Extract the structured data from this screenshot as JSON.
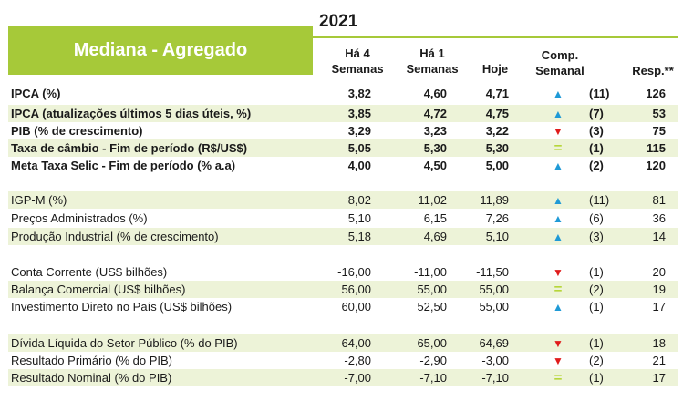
{
  "title": "Mediana - Agregado",
  "year": "2021",
  "headers": {
    "col1_line1": "Há 4",
    "col1_line2": "Semanas",
    "col2_line1": "Há 1",
    "col2_line2": "Semanas",
    "col3": "Hoje",
    "col4_line1": "Comp.",
    "col4_line2": "Semanal",
    "col5": "Resp.**"
  },
  "rows": [
    {
      "label": "IPCA (%)",
      "w4": "3,82",
      "w1": "4,60",
      "today": "4,71",
      "trend": "up",
      "count": "(11)",
      "resp": "126"
    },
    {
      "label": "IPCA (atualizações últimos 5 dias úteis, %)",
      "w4": "3,85",
      "w1": "4,72",
      "today": "4,75",
      "trend": "up",
      "count": "(7)",
      "resp": "53"
    },
    {
      "label": "PIB (% de crescimento)",
      "w4": "3,29",
      "w1": "3,23",
      "today": "3,22",
      "trend": "down",
      "count": "(3)",
      "resp": "75"
    },
    {
      "label": "Taxa de câmbio - Fim de período (R$/US$)",
      "w4": "5,05",
      "w1": "5,30",
      "today": "5,30",
      "trend": "eq",
      "count": "(1)",
      "resp": "115"
    },
    {
      "label": "Meta Taxa Selic - Fim de período (% a.a)",
      "w4": "4,00",
      "w1": "4,50",
      "today": "5,00",
      "trend": "up",
      "count": "(2)",
      "resp": "120"
    },
    {
      "label": "IGP-M (%)",
      "w4": "8,02",
      "w1": "11,02",
      "today": "11,89",
      "trend": "up",
      "count": "(11)",
      "resp": "81"
    },
    {
      "label": "Preços Administrados (%)",
      "w4": "5,10",
      "w1": "6,15",
      "today": "7,26",
      "trend": "up",
      "count": "(6)",
      "resp": "36"
    },
    {
      "label": "Produção Industrial (% de crescimento)",
      "w4": "5,18",
      "w1": "4,69",
      "today": "5,10",
      "trend": "up",
      "count": "(3)",
      "resp": "14"
    },
    {
      "label": "Conta Corrente (US$ bilhões)",
      "w4": "-16,00",
      "w1": "-11,00",
      "today": "-11,50",
      "trend": "down",
      "count": "(1)",
      "resp": "20"
    },
    {
      "label": "Balança Comercial (US$ bilhões)",
      "w4": "56,00",
      "w1": "55,00",
      "today": "55,00",
      "trend": "eq",
      "count": "(2)",
      "resp": "19"
    },
    {
      "label": "Investimento Direto no País (US$ bilhões)",
      "w4": "60,00",
      "w1": "52,50",
      "today": "55,00",
      "trend": "up",
      "count": "(1)",
      "resp": "17"
    },
    {
      "label": "Dívida Líquida do Setor Público (% do PIB)",
      "w4": "64,00",
      "w1": "65,00",
      "today": "64,69",
      "trend": "down",
      "count": "(1)",
      "resp": "18"
    },
    {
      "label": "Resultado Primário (% do PIB)",
      "w4": "-2,80",
      "w1": "-2,90",
      "today": "-3,00",
      "trend": "down",
      "count": "(2)",
      "resp": "21"
    },
    {
      "label": "Resultado Nominal (% do PIB)",
      "w4": "-7,00",
      "w1": "-7,10",
      "today": "-7,10",
      "trend": "eq",
      "count": "(1)",
      "resp": "17"
    }
  ],
  "colors": {
    "accent": "#a6c939",
    "band": "#edf3d8",
    "up": "#1f9ad6",
    "down": "#e01b1b",
    "eq": "#b6d63a"
  }
}
